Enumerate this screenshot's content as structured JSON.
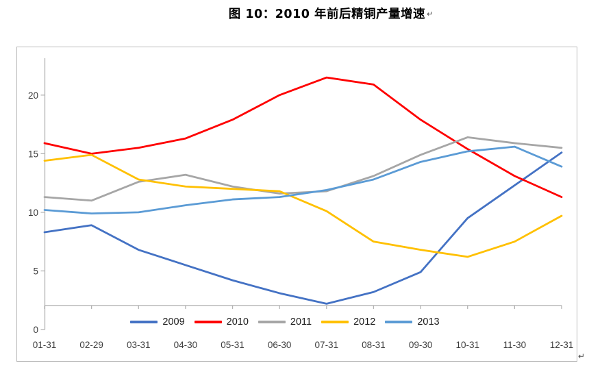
{
  "title": {
    "text": "图 10：2010 年前后精铜产量增速",
    "paragraph_mark": "↵"
  },
  "trailing_paragraph_mark": "↵",
  "chart_data": {
    "type": "line",
    "title": "图 10：2010 年前后精铜产量增速",
    "categories": [
      "01-31",
      "02-29",
      "03-31",
      "04-30",
      "05-31",
      "06-30",
      "07-31",
      "08-31",
      "09-30",
      "10-31",
      "11-30",
      "12-31"
    ],
    "y_axis": {
      "ticks": [
        0,
        5,
        10,
        15,
        20
      ],
      "min": 0,
      "max": 23,
      "label": ""
    },
    "x_axis": {
      "baseline_value": 2.05,
      "label": ""
    },
    "grid": "off",
    "legend_position": "bottom",
    "colors": {
      "axis": "#b3b3b3",
      "tick_label": "#3c3c3c",
      "legend_text": "#1a1a1a"
    },
    "series": [
      {
        "name": "2009",
        "color": "#4472C4",
        "values": [
          8.3,
          8.9,
          6.8,
          5.5,
          4.2,
          3.1,
          2.2,
          3.2,
          4.9,
          9.5,
          12.3,
          15.1
        ]
      },
      {
        "name": "2010",
        "color": "#FE0000",
        "values": [
          15.9,
          15.0,
          15.5,
          16.3,
          17.9,
          20.0,
          21.5,
          20.9,
          17.9,
          15.4,
          13.1,
          11.3
        ]
      },
      {
        "name": "2011",
        "color": "#A6A6A6",
        "values": [
          11.3,
          11.0,
          12.6,
          13.2,
          12.2,
          11.6,
          11.8,
          13.1,
          14.9,
          16.4,
          15.9,
          15.5
        ]
      },
      {
        "name": "2012",
        "color": "#FFC000",
        "values": [
          14.4,
          14.9,
          12.8,
          12.2,
          12.0,
          11.8,
          10.1,
          7.5,
          6.8,
          6.2,
          7.5,
          9.7
        ]
      },
      {
        "name": "2013",
        "color": "#5B9BD5",
        "values": [
          10.2,
          9.9,
          10.0,
          10.6,
          11.1,
          11.3,
          11.9,
          12.8,
          14.3,
          15.2,
          15.6,
          13.9
        ]
      }
    ]
  }
}
